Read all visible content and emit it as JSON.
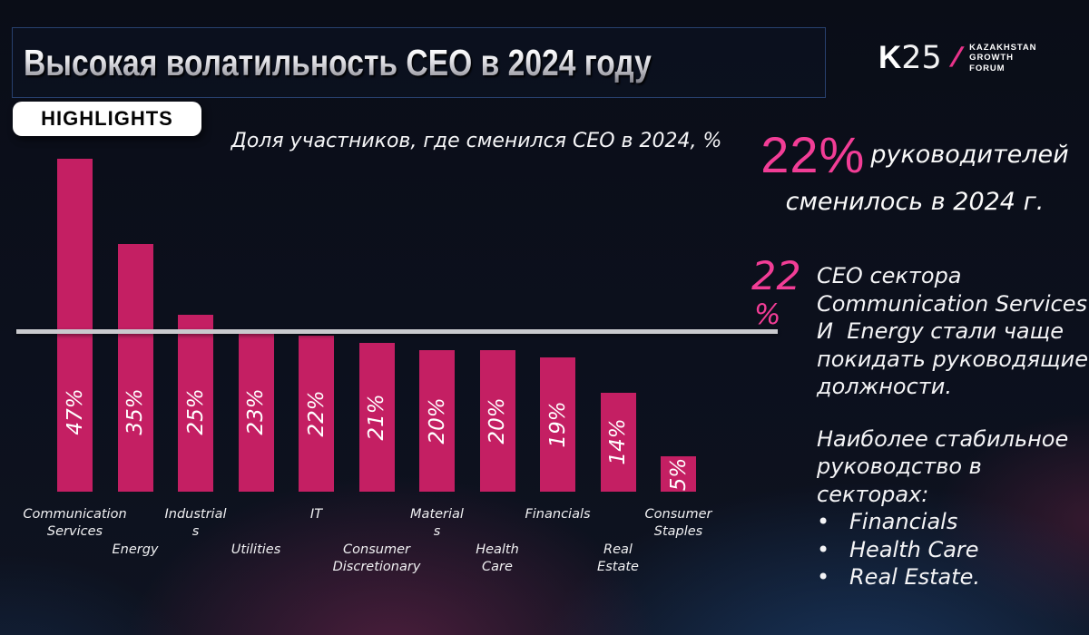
{
  "colors": {
    "accent_pink": "#f23d96",
    "bar_pink": "#c41f63",
    "reference_line_gray": "#c9c9cd",
    "text_white": "#f2f2f4"
  },
  "header": {
    "title": "Высокая волатильность CEO в 2024 году",
    "badge": "HIGHLIGHTS"
  },
  "logo": {
    "k": "K",
    "num": "25",
    "slash": "/",
    "lines": [
      "KAZAKHSTAN",
      "GROWTH",
      "FORUM"
    ]
  },
  "headline": {
    "stat": "22%",
    "line1_rest": "руководителей",
    "line2": "сменилось в 2024 г."
  },
  "note": {
    "stat_number": "22",
    "stat_percent": "%",
    "para1_lines": [
      "CEO сектора",
      "Communication Services",
      "И  Energy стали чаще",
      "покидать руководящие",
      "должности."
    ],
    "para2_lines": [
      "Наиболее стабильное",
      "руководство в",
      "секторах:"
    ],
    "bullet_char": "•",
    "bullets": [
      "Financials",
      "Health Care",
      "Real Estate."
    ]
  },
  "chart_data": {
    "type": "bar",
    "title": "Доля участников, где сменился CEO в 2024, %",
    "categories": [
      "Communication Services",
      "Energy",
      "Industrials",
      "Utilities",
      "IT",
      "Consumer Discretionary",
      "Materials",
      "Health Care",
      "Financials",
      "Real Estate",
      "Consumer Staples"
    ],
    "values": [
      47,
      35,
      25,
      23,
      22,
      21,
      20,
      20,
      19,
      14,
      5
    ],
    "value_labels": [
      "47%",
      "35%",
      "25%",
      "23%",
      "22%",
      "21%",
      "20%",
      "20%",
      "19%",
      "14%",
      "5%"
    ],
    "category_label_lines": [
      [
        "Communication",
        "Services"
      ],
      [
        "Energy"
      ],
      [
        "Industrial",
        "s"
      ],
      [
        "Utilities"
      ],
      [
        "IT"
      ],
      [
        "Consumer",
        "Discretionary"
      ],
      [
        "Material",
        "s"
      ],
      [
        "Health",
        "Care"
      ],
      [
        "Financials"
      ],
      [
        "Real",
        "Estate"
      ],
      [
        "Consumer",
        "Staples"
      ]
    ],
    "xlabel": "",
    "ylabel": "",
    "ylim": [
      0,
      50
    ],
    "grid": false,
    "legend": false,
    "reference_line": {
      "value": 22,
      "label": "22 %"
    },
    "bar_color": "#c41f63",
    "value_label_color": "#ffffff"
  }
}
